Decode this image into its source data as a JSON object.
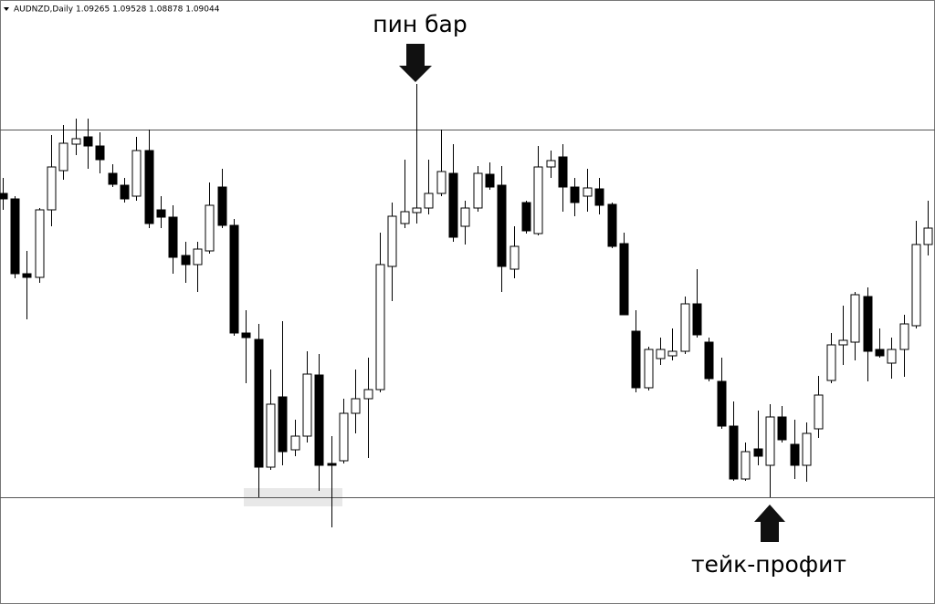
{
  "chart_data": {
    "type": "candlestick",
    "title": "AUDNZD,Daily 1.09265 1.09528 1.08878 1.09044",
    "annotations": [
      {
        "text": "пин бар"
      },
      {
        "text": "тейк-профит"
      }
    ],
    "ylim": [
      1.0538,
      1.12
    ],
    "levels": [
      1.1058,
      1.0655
    ],
    "up_color": "#ffffff",
    "down_color": "#000000",
    "open": [
      1.0988,
      1.0982,
      1.09,
      1.0896,
      1.097,
      1.1013,
      1.1042,
      1.105,
      1.104,
      1.101,
      1.0997,
      1.0985,
      1.1035,
      1.097,
      1.0962,
      1.092,
      1.091,
      1.0925,
      1.0995,
      1.0953,
      1.0835,
      1.0828,
      1.0688,
      1.0765,
      1.0707,
      1.0722,
      1.0789,
      1.0692,
      1.0695,
      1.0747,
      1.0763,
      1.0773,
      1.0908,
      1.0955,
      1.0967,
      1.0972,
      1.0988,
      1.101,
      1.0952,
      1.0972,
      1.1009,
      1.0997,
      1.0905,
      1.0978,
      1.0944,
      1.1017,
      1.1028,
      1.0995,
      1.0985,
      1.0993,
      1.0976,
      1.0933,
      1.0837,
      1.0775,
      1.0807,
      1.081,
      1.0815,
      1.0867,
      1.0825,
      1.0782,
      1.0733,
      1.0675,
      1.0708,
      1.069,
      1.0743,
      1.0713,
      1.069,
      1.073,
      1.0783,
      1.0822,
      1.0825,
      1.0875,
      1.0817,
      1.0802,
      1.0817,
      1.0843,
      1.0932
    ],
    "high": [
      1.1005,
      1.0985,
      1.0925,
      1.0972,
      1.1052,
      1.1063,
      1.107,
      1.107,
      1.1055,
      1.102,
      1.1005,
      1.105,
      1.1058,
      1.0985,
      1.0975,
      1.0935,
      1.0935,
      1.1,
      1.1015,
      1.096,
      1.086,
      1.0845,
      1.0795,
      1.0848,
      1.074,
      1.0815,
      1.0812,
      1.0722,
      1.0763,
      1.0795,
      1.0808,
      1.0945,
      1.0978,
      1.1025,
      1.1108,
      1.1025,
      1.1058,
      1.1042,
      1.098,
      1.1018,
      1.1022,
      1.1018,
      1.0952,
      1.098,
      1.104,
      1.1035,
      1.1042,
      1.1005,
      1.1015,
      1.1005,
      1.0978,
      1.0945,
      1.086,
      1.082,
      1.083,
      1.084,
      1.0875,
      1.0905,
      1.083,
      1.0808,
      1.076,
      1.0715,
      1.075,
      1.0757,
      1.0755,
      1.074,
      1.0737,
      1.0788,
      1.0835,
      1.0865,
      1.088,
      1.0885,
      1.084,
      1.083,
      1.0855,
      1.0958,
      1.098
    ],
    "low": [
      1.097,
      1.0895,
      1.085,
      1.089,
      1.0952,
      1.1003,
      1.103,
      1.1015,
      1.101,
      1.0995,
      1.0978,
      1.098,
      1.095,
      1.095,
      1.09,
      1.089,
      1.088,
      1.0922,
      1.095,
      1.0832,
      1.078,
      1.0655,
      1.0685,
      1.069,
      1.07,
      1.0715,
      1.0662,
      1.0622,
      1.0692,
      1.0725,
      1.0698,
      1.077,
      1.087,
      1.095,
      1.0955,
      1.0965,
      1.0985,
      1.0935,
      1.0932,
      1.0968,
      1.0992,
      1.088,
      1.0895,
      1.0944,
      1.0942,
      1.1005,
      1.0968,
      1.0963,
      1.0968,
      1.0965,
      1.0928,
      1.0855,
      1.077,
      1.0772,
      1.08,
      1.0805,
      1.0812,
      1.083,
      1.0782,
      1.073,
      1.0673,
      1.0673,
      1.069,
      1.0655,
      1.0715,
      1.0675,
      1.0672,
      1.072,
      1.078,
      1.08,
      1.0805,
      1.0782,
      1.0808,
      1.0785,
      1.0787,
      1.084,
      1.092
    ],
    "close": [
      1.0982,
      1.09,
      1.0896,
      1.097,
      1.1017,
      1.1043,
      1.1048,
      1.104,
      1.1025,
      1.0998,
      1.0982,
      1.1035,
      1.0955,
      1.0962,
      1.0918,
      1.091,
      1.0927,
      1.0975,
      1.0953,
      1.0835,
      1.083,
      1.0688,
      1.0757,
      1.0705,
      1.0722,
      1.079,
      1.069,
      1.069,
      1.0747,
      1.0763,
      1.0773,
      1.091,
      1.0963,
      1.0968,
      1.0972,
      1.0988,
      1.1012,
      1.094,
      1.0972,
      1.101,
      1.0995,
      1.0908,
      1.093,
      1.0947,
      1.1017,
      1.1024,
      1.0995,
      1.0978,
      1.0994,
      1.0975,
      1.093,
      1.0855,
      1.0775,
      1.0817,
      1.0817,
      1.0815,
      1.0867,
      1.0833,
      1.0785,
      1.0733,
      1.0675,
      1.0705,
      1.07,
      1.0743,
      1.0718,
      1.069,
      1.0725,
      1.0767,
      1.0822,
      1.0827,
      1.0877,
      1.0815,
      1.081,
      1.0817,
      1.0845,
      1.0932,
      1.095
    ]
  }
}
